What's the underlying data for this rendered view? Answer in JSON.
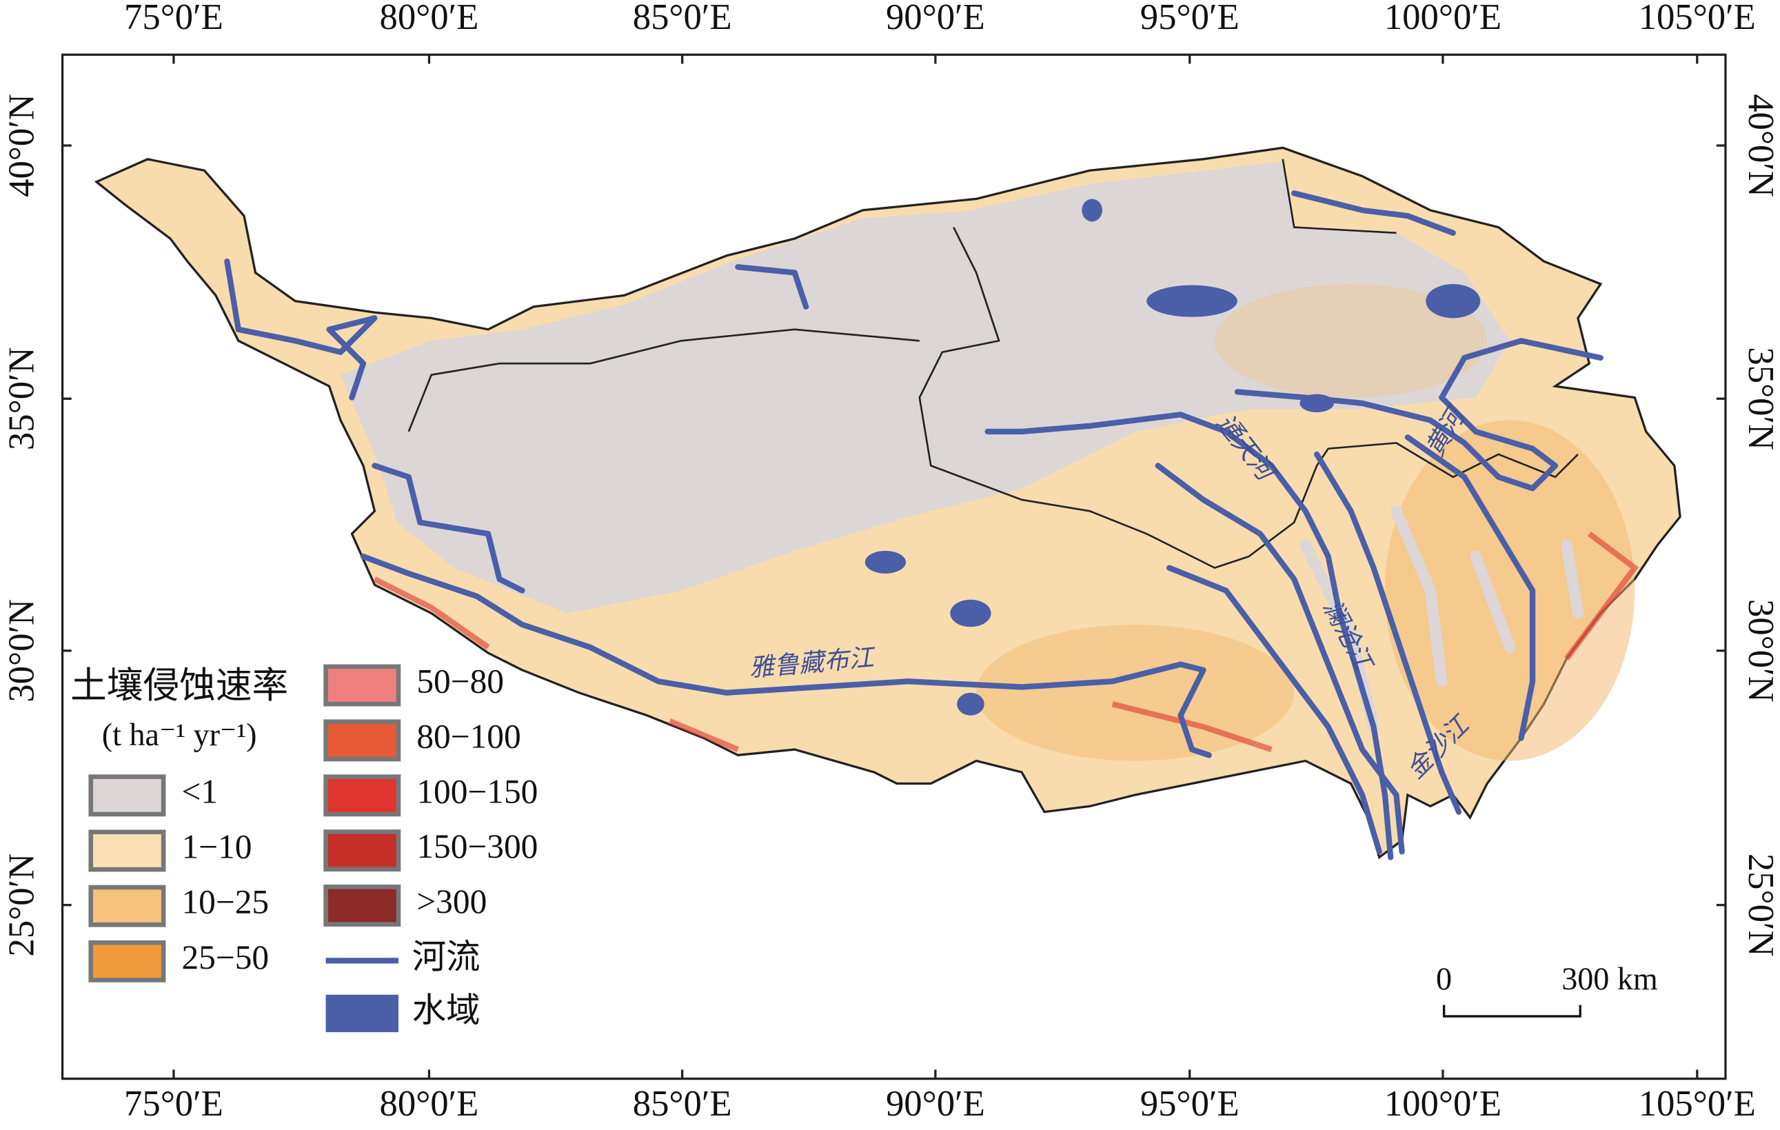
{
  "map": {
    "lon_labels": [
      "75°0′E",
      "80°0′E",
      "85°0′E",
      "90°0′E",
      "95°0′E",
      "100°0′E",
      "105°0′E"
    ],
    "lat_labels": [
      "40°0′N",
      "35°0′N",
      "30°0′N",
      "25°0′N"
    ]
  },
  "legend": {
    "title": "土壤侵蚀速率",
    "unit": "(t ha⁻¹ yr⁻¹)",
    "items": [
      {
        "label": "<1",
        "color": "#dcd6d6"
      },
      {
        "label": "1−10",
        "color": "#fbe0b4"
      },
      {
        "label": "10−25",
        "color": "#f6c27e"
      },
      {
        "label": "25−50",
        "color": "#f09a3c"
      },
      {
        "label": "50−80",
        "color": "#f08080"
      },
      {
        "label": "80−100",
        "color": "#e85a35"
      },
      {
        "label": "100−150",
        "color": "#e0352e"
      },
      {
        "label": "150−300",
        "color": "#c52f28"
      },
      {
        "label": ">300",
        "color": "#8b2a27"
      }
    ],
    "river": {
      "label": "河流",
      "color": "#4a5fa8"
    },
    "water": {
      "label": "水域",
      "color": "#4a5fa8"
    }
  },
  "river_labels": [
    "雅鲁藏布江",
    "通天河",
    "黄河",
    "澜沧江",
    "金沙江"
  ],
  "scale_bar": {
    "start": "0",
    "end": "300 km"
  }
}
